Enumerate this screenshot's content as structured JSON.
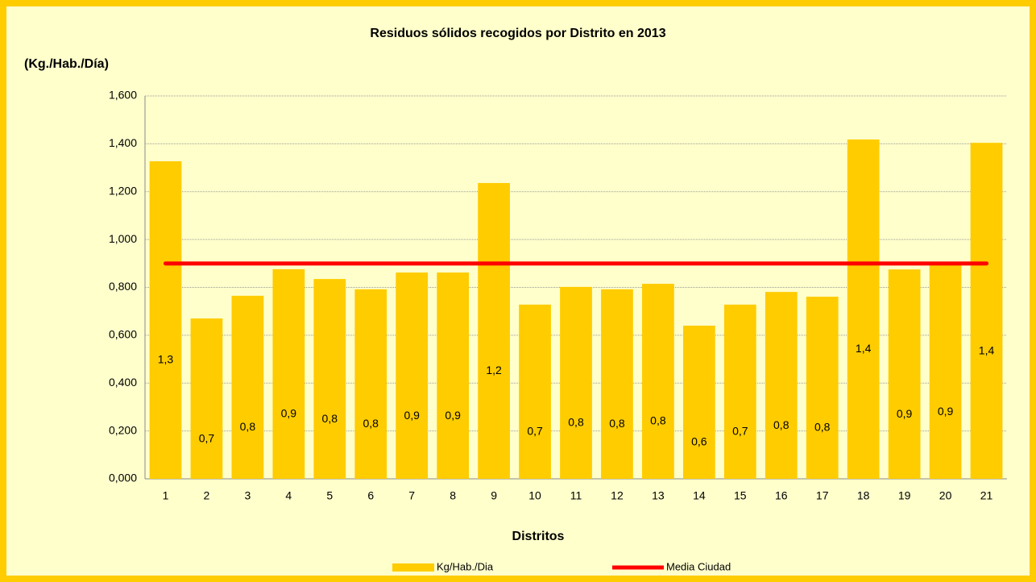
{
  "chart_data": {
    "type": "bar",
    "title": "Residuos sólidos recogidos por Distrito en 2013",
    "y_label": "(Kg./Hab./Día)",
    "x_label": "Distritos",
    "categories": [
      "1",
      "2",
      "3",
      "4",
      "5",
      "6",
      "7",
      "8",
      "9",
      "10",
      "11",
      "12",
      "13",
      "14",
      "15",
      "16",
      "17",
      "18",
      "19",
      "20",
      "21"
    ],
    "series": [
      {
        "name": "Kg/Hab./Dia",
        "color": "#ffcc00",
        "type": "bar",
        "values": [
          1.327,
          0.67,
          0.765,
          0.876,
          0.835,
          0.792,
          0.862,
          0.862,
          1.236,
          0.728,
          0.802,
          0.792,
          0.815,
          0.64,
          0.728,
          0.781,
          0.761,
          1.418,
          0.875,
          0.895,
          1.404
        ],
        "value_labels": [
          "1,3",
          "0,7",
          "0,8",
          "0,9",
          "0,8",
          "0,8",
          "0,9",
          "0,9",
          "1,2",
          "0,7",
          "0,8",
          "0,8",
          "0,8",
          "0,6",
          "0,7",
          "0,8",
          "0,8",
          "1,4",
          "0,9",
          "0,9",
          "1,4"
        ]
      },
      {
        "name": "Media Ciudad",
        "color": "#ff0000",
        "type": "line",
        "values": [
          0.9,
          0.9,
          0.9,
          0.9,
          0.9,
          0.9,
          0.9,
          0.9,
          0.9,
          0.9,
          0.9,
          0.9,
          0.9,
          0.9,
          0.9,
          0.9,
          0.9,
          0.9,
          0.9,
          0.9,
          0.9
        ]
      }
    ],
    "ylim": [
      0,
      1.6
    ],
    "yticks": [
      {
        "value": 0,
        "label": "0,000"
      },
      {
        "value": 0.2,
        "label": "0,200"
      },
      {
        "value": 0.4,
        "label": "0,400"
      },
      {
        "value": 0.6,
        "label": "0,600"
      },
      {
        "value": 0.8,
        "label": "0,800"
      },
      {
        "value": 1.0,
        "label": "1,000"
      },
      {
        "value": 1.2,
        "label": "1,200"
      },
      {
        "value": 1.4,
        "label": "1,400"
      },
      {
        "value": 1.6,
        "label": "1,600"
      }
    ],
    "grid": true
  }
}
